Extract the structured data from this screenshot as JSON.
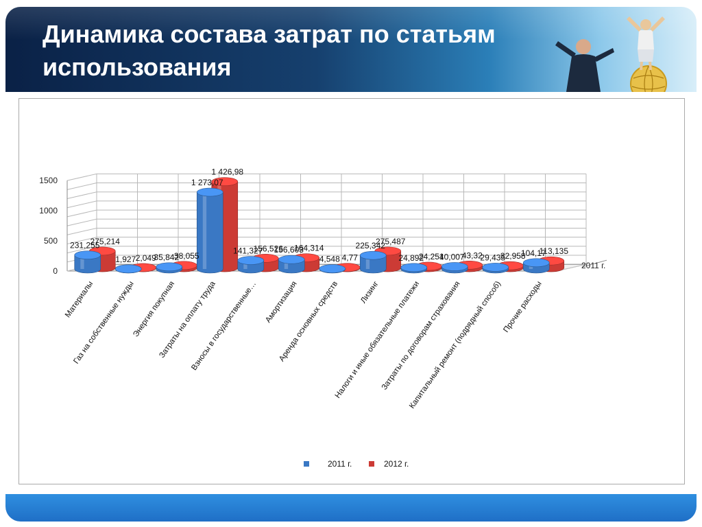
{
  "slide": {
    "title": "Динамика состава затрат по статьям использования"
  },
  "colors": {
    "series_2011": "#3a78c4",
    "series_2012": "#cc3b35",
    "grid": "#b8b8b8"
  },
  "chart_data": {
    "type": "bar",
    "title": "",
    "xlabel": "",
    "ylabel": "",
    "ylim": [
      0,
      1500
    ],
    "yticks": [
      "0",
      "500",
      "1000",
      "1500"
    ],
    "grid": true,
    "legend_position": "bottom",
    "depth_axis_label": "2011 г.",
    "categories": [
      "Материалы",
      "Газ на собственные нужды",
      "Энергия покупная",
      "Затраты на оплату труда",
      "Взносы в государственные…",
      "Амортизация",
      "Аренда основных средств",
      "Лизинг",
      "Налоги и иные обязательные платежи",
      "Затраты по договорам страхования",
      "Капитальный ремонт (подрядный способ)",
      "Прочие расходы"
    ],
    "series": [
      {
        "name": "2011 г.",
        "values": [
          231.255,
          1.927,
          35.842,
          1273.07,
          141.327,
          156.603,
          4.548,
          225.342,
          24.892,
          40.007,
          29.435,
          104.17
        ],
        "labels": [
          "231,255",
          "1,927",
          "35,842",
          "1 273,07",
          "141,327",
          "156,603",
          "4,548",
          "225,342",
          "24,892",
          "40,007",
          "29,435",
          "104,17"
        ]
      },
      {
        "name": "2012 г.",
        "values": [
          275.214,
          2.049,
          38.055,
          1426.98,
          156.526,
          164.314,
          4.77,
          275.487,
          24.251,
          43.32,
          32.958,
          113.135
        ],
        "labels": [
          "275,214",
          "2,049",
          "38,055",
          "1 426,98",
          "156,526",
          "164,314",
          "4,77",
          "275,487",
          "24,251",
          "43,32",
          "32,958",
          "113,135"
        ]
      }
    ]
  }
}
